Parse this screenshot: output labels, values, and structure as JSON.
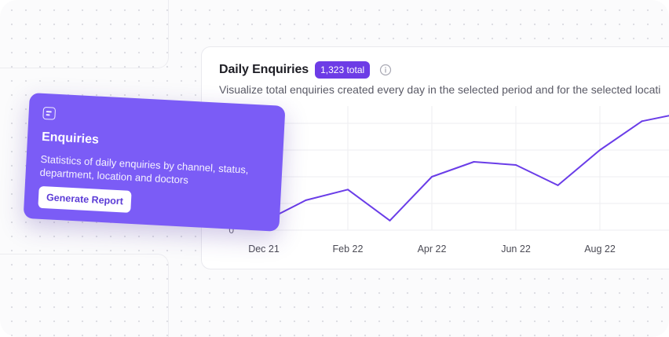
{
  "chart_card": {
    "title": "Daily Enquiries",
    "total_badge": "1,323 total",
    "description": "Visualize total enquiries created every day in the selected period and for the selected locati"
  },
  "enquiries_card": {
    "title": "Enquiries",
    "description": "Statistics of daily enquiries by channel, status, department, location and doctors",
    "button_label": "Generate Report",
    "icon": "list-icon"
  },
  "colors": {
    "accent": "#6d3ce6",
    "card": "#7b5cf6",
    "line": "#6a3de8"
  },
  "chart_data": {
    "type": "line",
    "title": "Daily Enquiries",
    "x_ticks": [
      "Dec 21",
      "Feb 22",
      "Apr 22",
      "Jun 22",
      "Aug 22"
    ],
    "y_ticks": [
      "0"
    ],
    "x": [
      0,
      0.5,
      1,
      1.5,
      2,
      2.5,
      3,
      3.5,
      4,
      4.5,
      5
    ],
    "values": [
      8,
      28,
      38,
      9,
      50,
      64,
      61,
      42,
      75,
      102,
      110
    ],
    "ylim": [
      0,
      100
    ],
    "grid": true
  }
}
